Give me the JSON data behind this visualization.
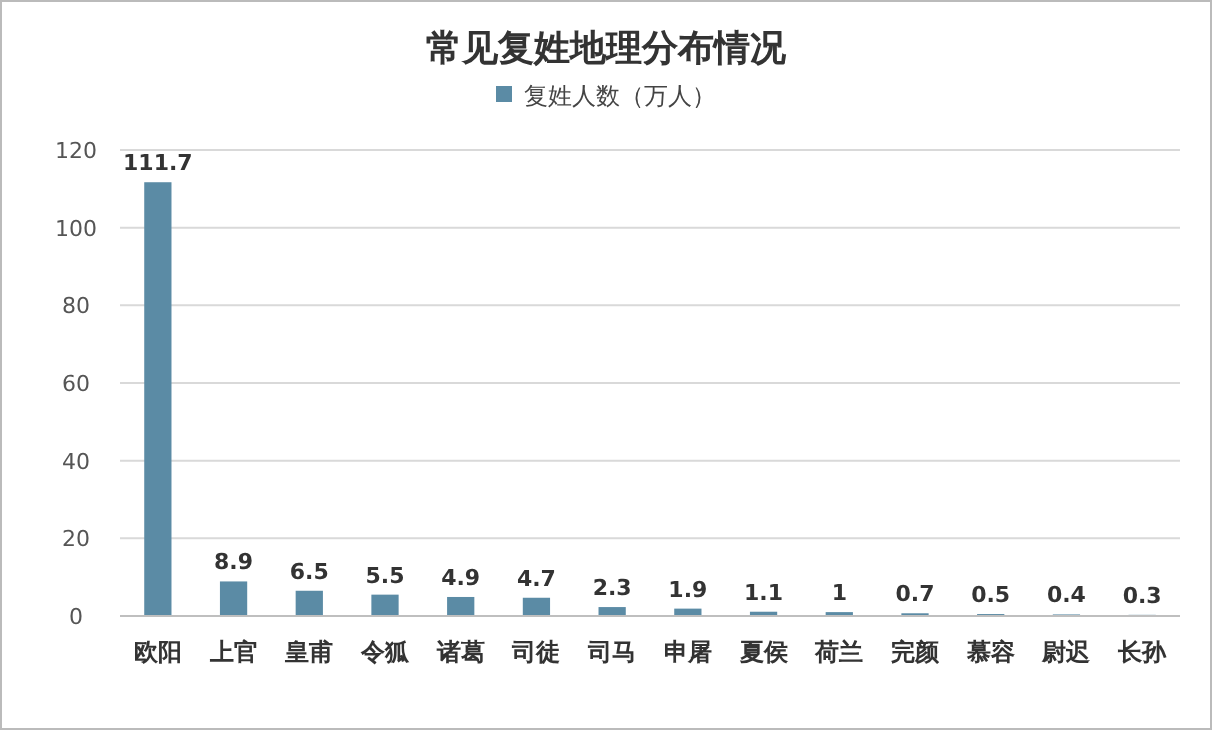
{
  "chart_data": {
    "type": "bar",
    "title": "常见复姓地理分布情况",
    "categories": [
      "欧阳",
      "上官",
      "皇甫",
      "令狐",
      "诸葛",
      "司徒",
      "司马",
      "申屠",
      "夏侯",
      "荷兰",
      "完颜",
      "慕容",
      "尉迟",
      "长孙"
    ],
    "series": [
      {
        "name": "复姓人数（万人）",
        "color": "#5b8ba5",
        "values": [
          111.7,
          8.9,
          6.5,
          5.5,
          4.9,
          4.7,
          2.3,
          1.9,
          1.1,
          1,
          0.7,
          0.5,
          0.4,
          0.3
        ]
      }
    ],
    "ylim": [
      0,
      120
    ],
    "yticks": [
      0,
      20,
      40,
      60,
      80,
      100,
      120
    ],
    "grid": "y",
    "legend": "top",
    "data_labels": true
  }
}
